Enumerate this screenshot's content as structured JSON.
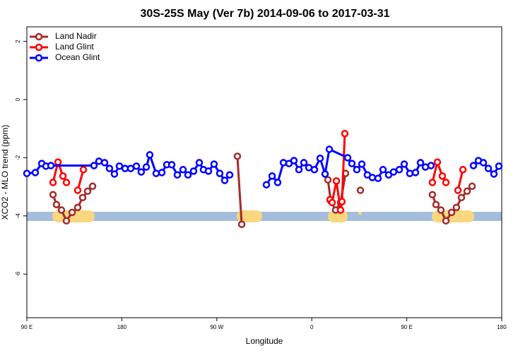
{
  "chart_data": {
    "type": "line",
    "title": "30S-25S May (Ver 7b)   2014-09-06 to 2017-03-31",
    "x_label": "Longitude",
    "y_label": "XCO2 - MLO trend (ppm)",
    "xlim": [
      90,
      540
    ],
    "ylim": [
      -7.5,
      2.5
    ],
    "xticks": [
      {
        "value": 90,
        "label": "90 E"
      },
      180,
      {
        "value": 270,
        "label": "90 W"
      },
      {
        "value": 360,
        "label": "0"
      },
      {
        "value": 450,
        "label": "90 E"
      },
      {
        "value": 540,
        "label": "180"
      }
    ],
    "yticks": [
      2,
      0,
      -2,
      -4,
      -6
    ],
    "legend_position": "top-left",
    "series": [
      {
        "name": "Land Nadir",
        "color": "#a52a2a",
        "x": [
          114.8,
          118.1,
          122.8,
          127.5,
          132.9,
          138.2,
          142.9,
          147.6,
          152.3,
          null,
          289.5,
          293.6,
          null,
          375.3,
          378.0,
          382.6,
          387.3,
          392.0,
          null,
          406.1,
          null,
          474.3,
          477.7,
          482.4,
          487.1,
          492.5,
          497.1,
          501.8,
          507.2,
          511.9
        ],
        "values": [
          -3.27,
          -3.61,
          -3.8,
          -4.17,
          -3.88,
          -3.71,
          -3.37,
          -3.15,
          -2.98,
          null,
          -1.95,
          -4.29,
          null,
          -2.76,
          -3.49,
          -3.8,
          -3.54,
          -2.54,
          null,
          -3.12,
          null,
          -3.27,
          -3.61,
          -3.8,
          -4.17,
          -3.88,
          -3.71,
          -3.37,
          -3.15,
          -2.98
        ]
      },
      {
        "name": "Land Glint",
        "color": "#ff0000",
        "x": [
          114.8,
          119.5,
          124.2,
          127.5,
          null,
          138.2,
          143.6,
          null,
          377.3,
          379.3,
          383.3,
          387.3,
          388.6,
          391.3,
          null,
          474.3,
          479.0,
          483.7,
          487.1,
          null,
          498.5,
          503.2
        ],
        "values": [
          -2.85,
          -2.15,
          -2.63,
          -2.85,
          null,
          -3.12,
          -2.41,
          null,
          -3.44,
          -3.54,
          -2.8,
          -3.8,
          -3.51,
          -1.17,
          null,
          -2.85,
          -2.15,
          -2.63,
          -2.85,
          null,
          -3.12,
          -2.41
        ]
      },
      {
        "name": "Ocean Glint",
        "color": "#0000ff",
        "x": [
          90,
          98.0,
          104.1,
          108.1,
          112.8,
          153.6,
          158.3,
          163.7,
          168.3,
          173.0,
          177.7,
          183.1,
          188.4,
          193.8,
          198.4,
          203.2,
          206.5,
          212.5,
          217.9,
          222.6,
          227.3,
          232.6,
          238.0,
          242.7,
          248.0,
          253.4,
          257.4,
          262.1,
          267.4,
          272.8,
          277.5,
          282.2,
          null,
          317.0,
          322.4,
          327.7,
          333.1,
          338.4,
          343.1,
          347.8,
          352.5,
          357.2,
          362.5,
          367.9,
          372.6,
          376.6,
          394.0,
          398.0,
          402.7,
          407.4,
          412.7,
          417.4,
          422.8,
          427.5,
          432.8,
          437.5,
          442.9,
          447.6,
          452.9,
          458.3,
          463.0,
          467.7,
          473.0,
          null,
          513.2,
          517.9,
          522.6,
          527.3,
          532.6,
          537.3
        ],
        "values": [
          -2.54,
          -2.51,
          -2.2,
          -2.29,
          -2.27,
          -2.27,
          -2.12,
          -2.17,
          -2.37,
          -2.56,
          -2.29,
          -2.37,
          -2.37,
          -2.29,
          -2.49,
          -2.32,
          -1.9,
          -2.54,
          -2.51,
          -2.24,
          -2.24,
          -2.59,
          -2.41,
          -2.59,
          -2.46,
          -2.17,
          -2.41,
          -2.46,
          -2.22,
          -2.54,
          -2.78,
          -2.59,
          null,
          -2.93,
          -2.63,
          -2.85,
          -2.17,
          -2.2,
          -2.1,
          -2.41,
          -2.17,
          -2.34,
          -2.41,
          -2.02,
          -2.56,
          -1.71,
          -2.0,
          -2.2,
          -2.41,
          -2.22,
          -2.59,
          -2.68,
          -2.71,
          -2.41,
          -2.59,
          -2.49,
          -2.41,
          -2.22,
          -2.54,
          -2.51,
          -2.17,
          -2.32,
          -2.27,
          null,
          -2.27,
          -2.1,
          -2.17,
          -2.37,
          -2.56,
          -2.29
        ]
      }
    ]
  }
}
